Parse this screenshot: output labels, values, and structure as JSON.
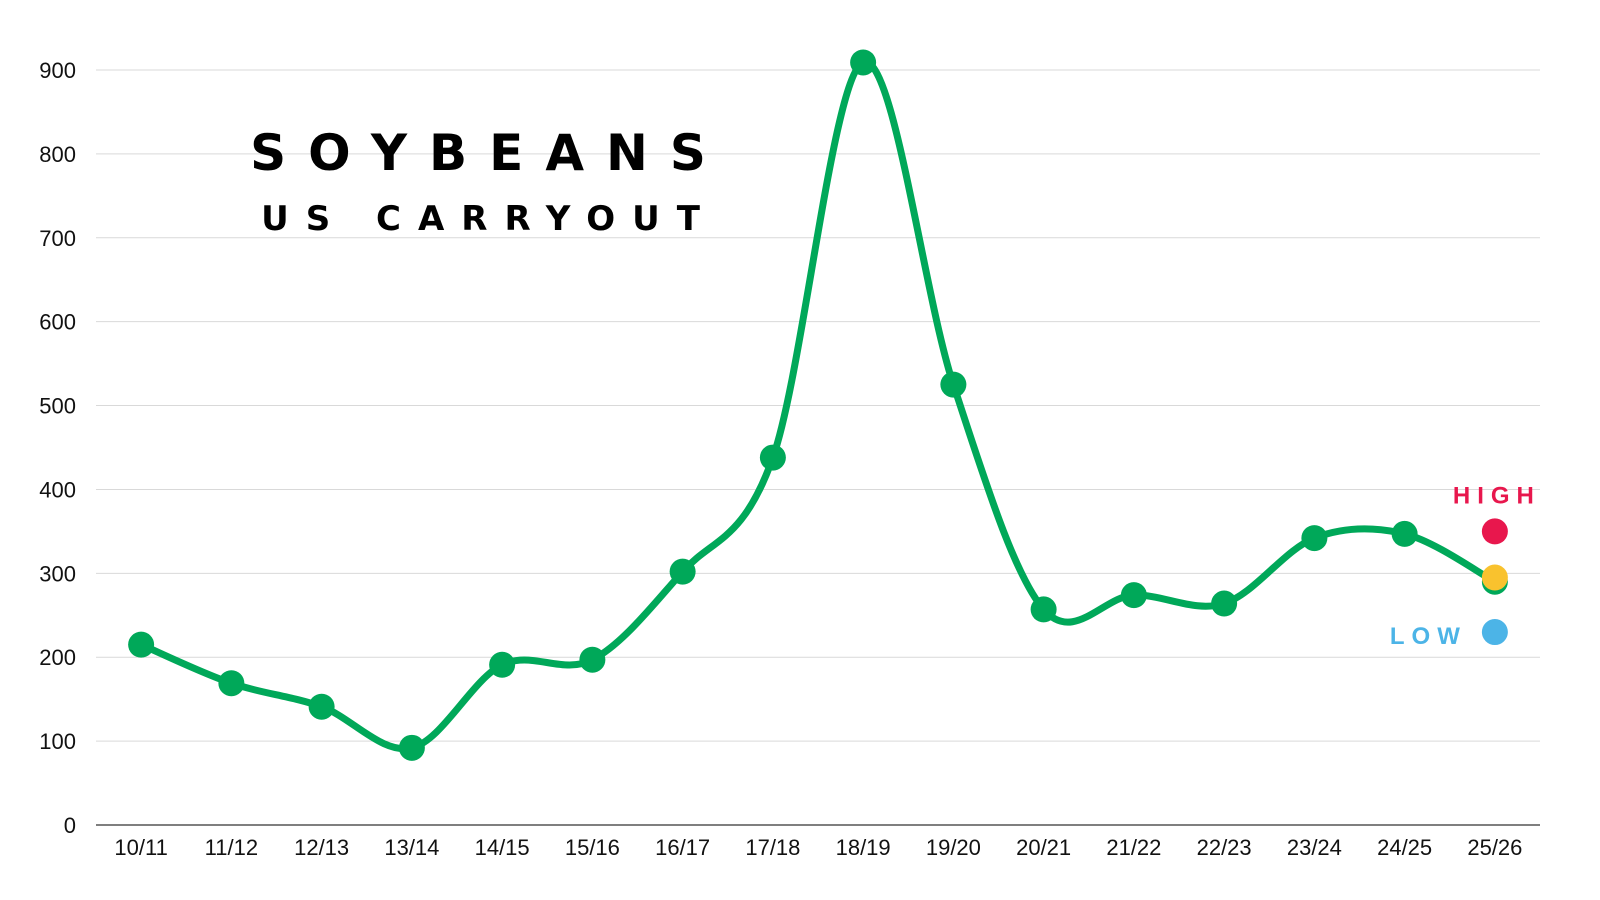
{
  "chart_data": {
    "type": "line",
    "title": "SOYBEANS",
    "subtitle": "US CARRYOUT",
    "categories": [
      "10/11",
      "11/12",
      "12/13",
      "13/14",
      "14/15",
      "15/16",
      "16/17",
      "17/18",
      "18/19",
      "19/20",
      "20/21",
      "21/22",
      "22/23",
      "23/24",
      "24/25",
      "25/26"
    ],
    "series": [
      {
        "values": [
          215,
          169,
          141,
          92,
          191,
          197,
          302,
          438,
          909,
          525,
          257,
          274,
          264,
          342,
          347,
          290
        ],
        "color": "#00A859"
      }
    ],
    "y_ticks": [
      "0",
      "100",
      "200",
      "300",
      "400",
      "500",
      "600",
      "700",
      "800",
      "900"
    ],
    "ylim": [
      0,
      900
    ],
    "grid": true,
    "legend": "none",
    "markers": {
      "high": {
        "label": "HIGH",
        "category": "25/26",
        "value": 350,
        "color": "#E8174D"
      },
      "mid": {
        "category": "25/26",
        "value": 295,
        "color": "#F9C22E"
      },
      "low": {
        "label": "LOW",
        "category": "25/26",
        "value": 230,
        "color": "#4CB4E7"
      }
    }
  }
}
